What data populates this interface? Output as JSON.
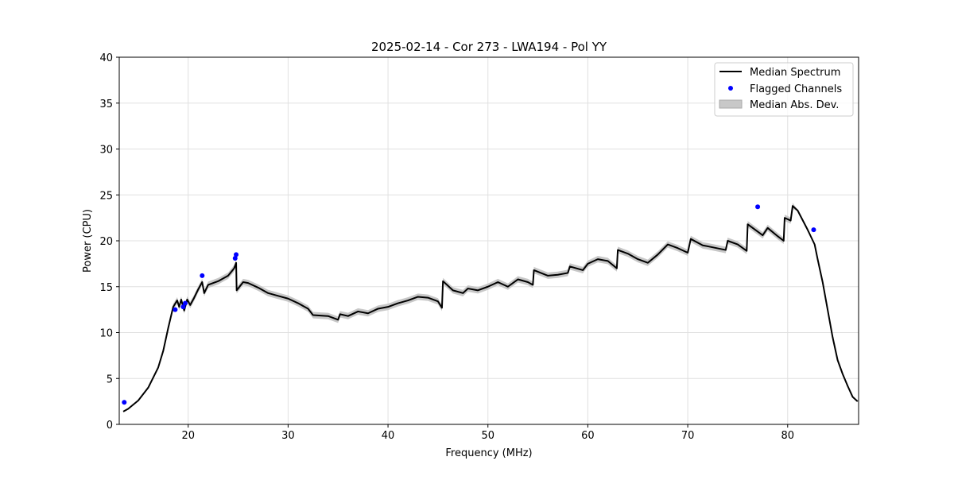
{
  "chart_data": {
    "type": "line",
    "title": "2025-02-14 - Cor 273 - LWA194 - Pol YY",
    "xlabel": "Frequency (MHz)",
    "ylabel": "Power (CPU)",
    "xlim": [
      13.1,
      87.1
    ],
    "ylim": [
      0,
      40
    ],
    "xticks": [
      20,
      30,
      40,
      50,
      60,
      70,
      80
    ],
    "yticks": [
      0,
      5,
      10,
      15,
      20,
      25,
      30,
      35,
      40
    ],
    "grid": true,
    "legend_position": "top-right",
    "legend": [
      "Median Spectrum",
      "Flagged Channels",
      "Median Abs. Dev."
    ],
    "mad_typical": 0.35,
    "series": [
      {
        "name": "Median Spectrum",
        "color": "#000000",
        "x": [
          13.5,
          14,
          15,
          16,
          17,
          17.5,
          18,
          18.5,
          18.9,
          19.1,
          19.3,
          19.6,
          19.9,
          20.2,
          20.6,
          21,
          21.4,
          21.6,
          22,
          23,
          24,
          24.6,
          24.8,
          24.85,
          25.5,
          26,
          27,
          28,
          29,
          30,
          31,
          32,
          32.5,
          34,
          35,
          35.2,
          36,
          37,
          38,
          39,
          40,
          41,
          42,
          43,
          44,
          45,
          45.4,
          45.5,
          46.5,
          47.5,
          48,
          49,
          50,
          51,
          52,
          53,
          54,
          54.5,
          54.6,
          56,
          57,
          58,
          58.2,
          59.5,
          60,
          61,
          62,
          62.9,
          63,
          64,
          65,
          66,
          67,
          68,
          69,
          70,
          70.3,
          71.5,
          72,
          73.8,
          74,
          75,
          75.9,
          76,
          77,
          77.5,
          78,
          79,
          79.6,
          79.7,
          80.3,
          80.5,
          81,
          82,
          82.7,
          83,
          83.5,
          84,
          84.5,
          85,
          85.5,
          86,
          86.5,
          87
        ],
        "y": [
          1.4,
          1.7,
          2.6,
          4.0,
          6.2,
          8.0,
          10.5,
          12.8,
          13.5,
          12.8,
          13.6,
          12.4,
          13.6,
          13.0,
          13.8,
          14.7,
          15.5,
          14.3,
          15.2,
          15.6,
          16.2,
          17.0,
          17.6,
          14.6,
          15.5,
          15.4,
          14.9,
          14.3,
          14.0,
          13.7,
          13.2,
          12.6,
          11.9,
          11.8,
          11.4,
          12.0,
          11.8,
          12.3,
          12.1,
          12.6,
          12.8,
          13.2,
          13.5,
          13.9,
          13.8,
          13.4,
          12.7,
          15.6,
          14.6,
          14.3,
          14.8,
          14.6,
          15.0,
          15.5,
          15.0,
          15.8,
          15.5,
          15.2,
          16.8,
          16.2,
          16.3,
          16.5,
          17.2,
          16.8,
          17.5,
          18.0,
          17.8,
          17.0,
          19.0,
          18.6,
          18.0,
          17.6,
          18.5,
          19.6,
          19.2,
          18.7,
          20.2,
          19.5,
          19.4,
          19.0,
          20.0,
          19.6,
          18.9,
          21.8,
          21.0,
          20.6,
          21.4,
          20.5,
          20.0,
          22.5,
          22.2,
          23.8,
          23.3,
          21.2,
          19.6,
          18.0,
          15.5,
          12.5,
          9.5,
          7.0,
          5.5,
          4.2,
          3.0,
          2.5
        ]
      },
      {
        "name": "Flagged Channels",
        "color": "#0000ff",
        "x": [
          13.6,
          18.7,
          19.5,
          19.7,
          21.4,
          24.7,
          24.8,
          77.0,
          82.6
        ],
        "y": [
          2.4,
          12.5,
          12.8,
          13.2,
          16.2,
          18.1,
          18.5,
          23.7,
          21.2
        ]
      }
    ],
    "band_color": "#c8c8c8"
  }
}
